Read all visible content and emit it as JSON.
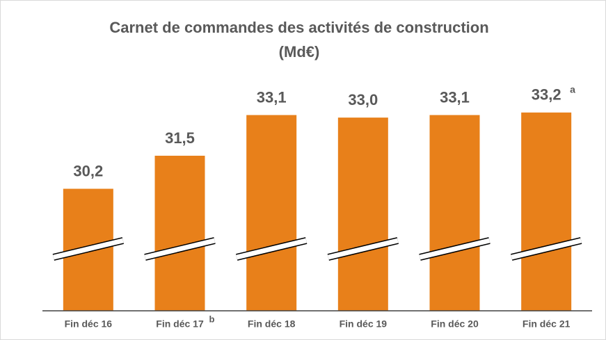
{
  "chart_data": {
    "type": "bar",
    "title": "Carnet de commandes des activités de construction",
    "subtitle": "(Md€)",
    "categories": [
      "Fin déc 16",
      "Fin déc 17",
      "Fin déc 18",
      "Fin déc 19",
      "Fin déc 20",
      "Fin déc 21"
    ],
    "category_notes": [
      null,
      "b",
      null,
      null,
      null,
      null
    ],
    "values": [
      30.2,
      31.5,
      33.1,
      33.0,
      33.1,
      33.2
    ],
    "value_labels": [
      "30,2",
      "31,5",
      "33,1",
      "33,0",
      "33,1",
      "33,2"
    ],
    "value_notes": [
      null,
      null,
      null,
      null,
      null,
      "a"
    ],
    "color": "#e8801a",
    "ylim": [
      25.4,
      35
    ]
  }
}
